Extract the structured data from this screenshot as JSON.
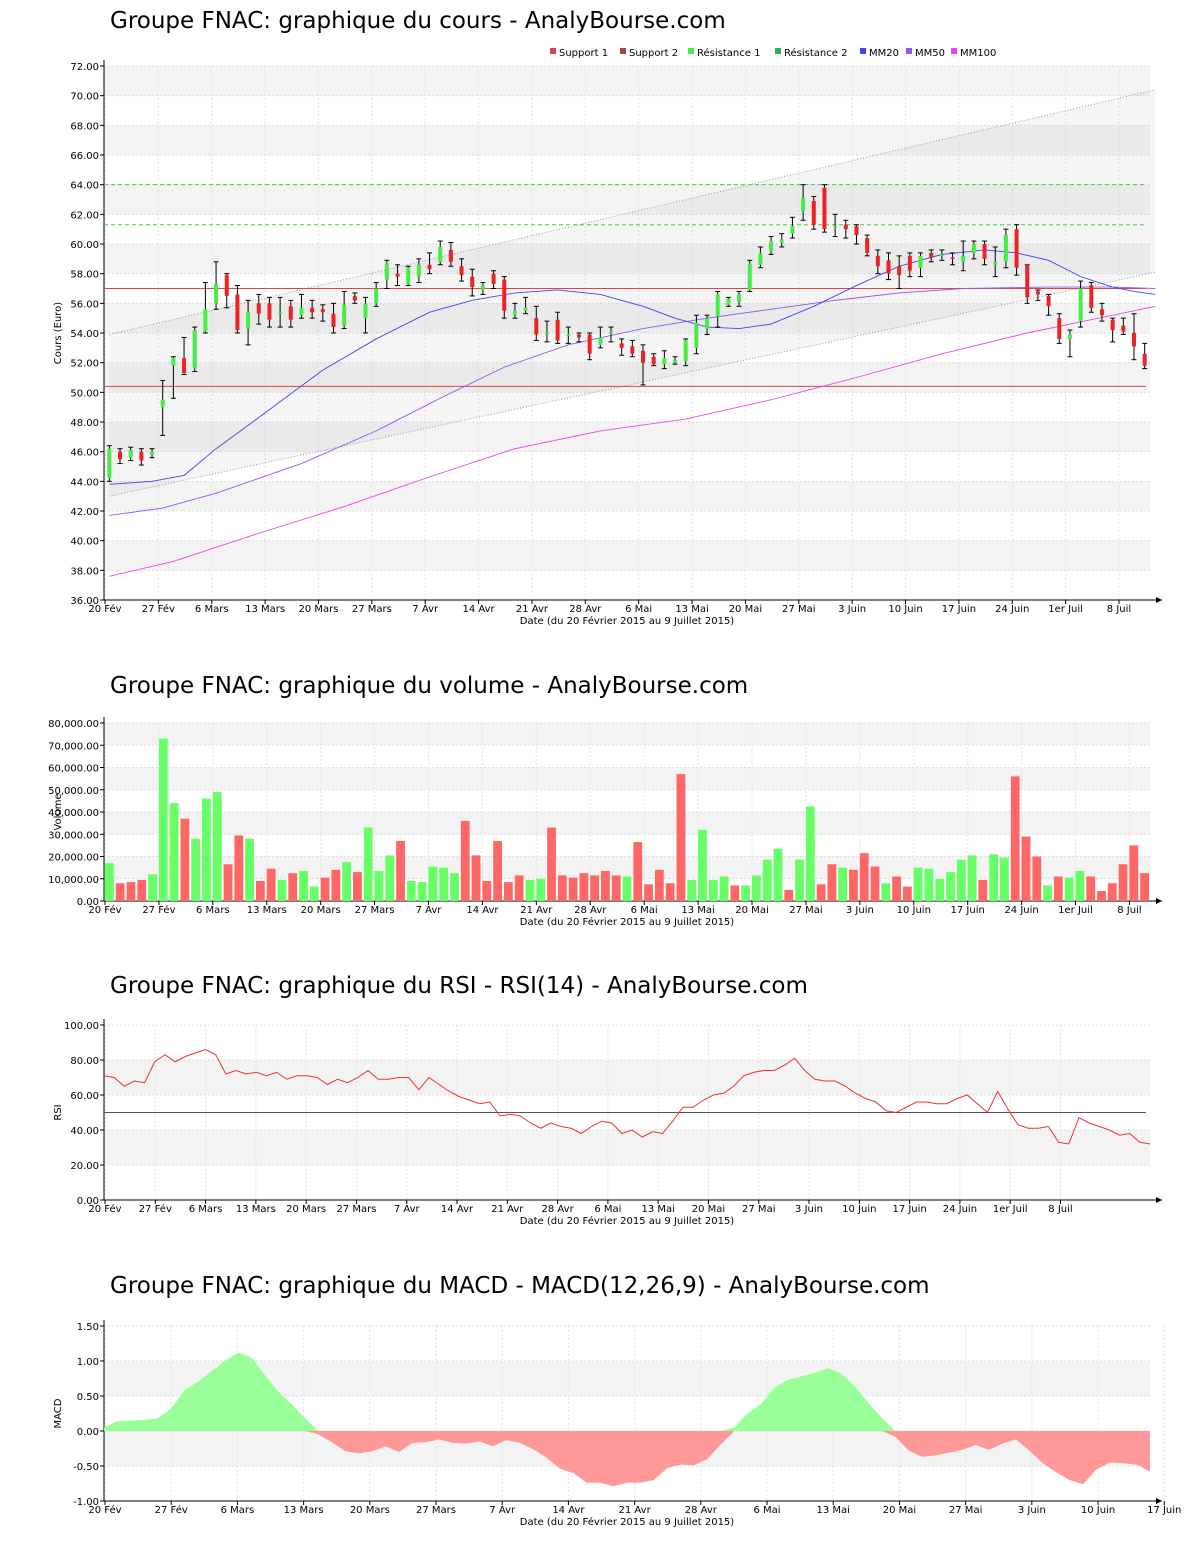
{
  "colors": {
    "up": "#44ee44",
    "down": "#ee2222",
    "vol_up": "#66ff66",
    "vol_down": "#ff6666",
    "mm20": "#4444ee",
    "mm50": "#9955ee",
    "mm100": "#ee44ee",
    "support": "#dd4444",
    "resistance": "#44cc44",
    "rsi": "#ee3333",
    "macd_pos": "#99ff99",
    "macd_neg": "#ff9999"
  },
  "x_ticks": [
    "20 Fév",
    "27 Fév",
    "6 Mars",
    "13 Mars",
    "20 Mars",
    "27 Mars",
    "7 Avr",
    "14 Avr",
    "21 Avr",
    "28 Avr",
    "6 Mai",
    "13 Mai",
    "20 Mai",
    "27 Mai",
    "3 Juin",
    "10 Juin",
    "17 Juin",
    "24 Juin",
    "1er Juil",
    "8 Juil"
  ],
  "x_axis_label": "Date (du 20 Février 2015 au 9 Juillet 2015)",
  "price": {
    "title": "Groupe FNAC: graphique du cours - AnalyBourse.com",
    "ylabel": "Cours (Euro)",
    "yticks": [
      "72.00",
      "70.00",
      "68.00",
      "66.00",
      "64.00",
      "62.00",
      "60.00",
      "58.00",
      "56.00",
      "54.00",
      "52.00",
      "50.00",
      "48.00",
      "46.00",
      "44.00",
      "42.00",
      "40.00",
      "38.00",
      "36.00"
    ],
    "legend": [
      "Support 1",
      "Support 2",
      "Résistance 1",
      "Résistance 2",
      "MM20",
      "MM50",
      "MM100"
    ],
    "chart_data": {
      "type": "candlestick",
      "ylim": [
        36,
        72
      ],
      "levels": {
        "support_1": 50.4,
        "support_2": 57.0,
        "resistance_1": 61.3,
        "resistance_2": 64.0
      },
      "channel": {
        "upper": [
          [
            0,
            53.9
          ],
          [
            98,
            70.4
          ]
        ],
        "lower": [
          [
            0,
            43.0
          ],
          [
            98,
            58.1
          ]
        ]
      },
      "candles": [
        [
          44.2,
          46.2,
          46.4,
          44.0
        ],
        [
          46.0,
          45.5,
          46.2,
          45.2
        ],
        [
          45.6,
          46.1,
          46.3,
          45.4
        ],
        [
          46.0,
          45.4,
          46.2,
          45.1
        ],
        [
          45.8,
          46.0,
          46.2,
          45.6
        ],
        [
          49.0,
          49.5,
          50.8,
          47.1
        ],
        [
          51.8,
          52.3,
          52.4,
          49.6
        ],
        [
          52.3,
          51.3,
          53.7,
          51.2
        ],
        [
          51.6,
          54.2,
          54.4,
          51.4
        ],
        [
          54.1,
          55.6,
          57.4,
          54.0
        ],
        [
          56.0,
          57.3,
          58.8,
          55.6
        ],
        [
          57.9,
          56.5,
          58.0,
          55.7
        ],
        [
          56.6,
          54.2,
          57.2,
          54.0
        ],
        [
          54.3,
          55.4,
          56.2,
          53.2
        ],
        [
          56.0,
          55.3,
          56.6,
          54.6
        ],
        [
          56.0,
          54.9,
          56.4,
          54.4
        ],
        [
          55.3,
          55.4,
          56.4,
          54.4
        ],
        [
          55.8,
          54.9,
          56.2,
          54.4
        ],
        [
          55.2,
          55.7,
          56.6,
          55.0
        ],
        [
          55.7,
          55.4,
          56.2,
          55.0
        ],
        [
          55.6,
          55.4,
          55.9,
          54.8
        ],
        [
          55.3,
          54.4,
          56.0,
          54.0
        ],
        [
          54.5,
          55.9,
          56.8,
          54.3
        ],
        [
          56.5,
          56.2,
          56.7,
          56.0
        ],
        [
          55.0,
          56.0,
          56.4,
          54.0
        ],
        [
          56.0,
          57.0,
          57.4,
          55.8
        ],
        [
          57.6,
          58.7,
          58.9,
          57.0
        ],
        [
          58.0,
          57.8,
          58.6,
          57.2
        ],
        [
          57.3,
          58.4,
          58.5,
          57.2
        ],
        [
          57.8,
          58.6,
          59.0,
          57.4
        ],
        [
          58.6,
          58.3,
          59.4,
          58.0
        ],
        [
          58.8,
          59.8,
          60.2,
          58.6
        ],
        [
          59.6,
          58.8,
          60.1,
          58.5
        ],
        [
          58.5,
          57.9,
          59.0,
          57.5
        ],
        [
          57.8,
          57.1,
          58.3,
          56.5
        ],
        [
          56.9,
          57.2,
          57.4,
          56.6
        ],
        [
          58.0,
          57.3,
          58.2,
          57.0
        ],
        [
          57.6,
          55.5,
          57.8,
          55.0
        ],
        [
          55.2,
          55.5,
          56.0,
          55.0
        ],
        [
          55.5,
          55.7,
          56.4,
          55.3
        ],
        [
          55.0,
          53.9,
          55.8,
          53.5
        ],
        [
          54.0,
          54.0,
          54.8,
          53.4
        ],
        [
          54.9,
          53.5,
          55.4,
          53.3
        ],
        [
          53.8,
          53.9,
          54.4,
          53.3
        ],
        [
          53.9,
          53.7,
          54.0,
          53.4
        ],
        [
          53.9,
          52.6,
          54.0,
          52.2
        ],
        [
          53.2,
          53.7,
          54.4,
          53.0
        ],
        [
          54.0,
          54.1,
          54.4,
          53.4
        ],
        [
          53.3,
          53.0,
          53.6,
          52.5
        ],
        [
          53.1,
          52.6,
          53.5,
          52.4
        ],
        [
          52.8,
          52.0,
          53.2,
          50.5
        ],
        [
          52.4,
          51.9,
          52.6,
          51.8
        ],
        [
          51.9,
          52.3,
          52.8,
          51.6
        ],
        [
          52.0,
          52.2,
          52.4,
          51.9
        ],
        [
          52.1,
          53.5,
          53.6,
          51.8
        ],
        [
          53.0,
          54.7,
          55.2,
          52.6
        ],
        [
          54.3,
          55.0,
          55.2,
          53.9
        ],
        [
          55.1,
          56.6,
          56.8,
          54.4
        ],
        [
          55.9,
          56.3,
          56.4,
          55.8
        ],
        [
          56.1,
          56.6,
          56.8,
          55.8
        ],
        [
          56.9,
          58.7,
          58.9,
          56.8
        ],
        [
          58.6,
          59.4,
          59.8,
          58.4
        ],
        [
          59.5,
          60.2,
          60.5,
          59.3
        ],
        [
          60.1,
          60.3,
          60.7,
          59.8
        ],
        [
          60.7,
          61.2,
          61.8,
          60.4
        ],
        [
          62.2,
          63.1,
          64.0,
          61.6
        ],
        [
          62.9,
          61.3,
          63.2,
          61.0
        ],
        [
          63.8,
          61.0,
          64.0,
          60.8
        ],
        [
          61.2,
          61.2,
          62.0,
          60.5
        ],
        [
          61.3,
          61.0,
          61.6,
          60.4
        ],
        [
          61.2,
          60.6,
          61.3,
          60.0
        ],
        [
          60.4,
          59.4,
          60.6,
          59.2
        ],
        [
          59.2,
          58.5,
          59.6,
          58.0
        ],
        [
          58.9,
          58.0,
          59.4,
          57.6
        ],
        [
          58.5,
          57.9,
          59.2,
          57.0
        ],
        [
          59.2,
          58.2,
          59.4,
          57.8
        ],
        [
          58.4,
          59.2,
          59.4,
          57.8
        ],
        [
          59.4,
          59.1,
          59.6,
          58.8
        ],
        [
          59.2,
          59.3,
          59.6,
          58.9
        ],
        [
          59.1,
          59.0,
          59.4,
          58.6
        ],
        [
          58.8,
          59.2,
          60.2,
          58.2
        ],
        [
          59.4,
          60.0,
          60.2,
          59.0
        ],
        [
          60.0,
          59.0,
          60.2,
          58.6
        ],
        [
          58.6,
          58.8,
          59.8,
          57.8
        ],
        [
          58.8,
          60.6,
          61.0,
          58.4
        ],
        [
          61.0,
          58.4,
          61.3,
          57.9
        ],
        [
          58.6,
          56.4,
          58.6,
          56.0
        ],
        [
          56.8,
          56.6,
          56.9,
          56.2
        ],
        [
          56.5,
          55.8,
          56.6,
          55.2
        ],
        [
          55.0,
          53.6,
          55.3,
          53.3
        ],
        [
          53.6,
          53.9,
          54.2,
          52.4
        ],
        [
          54.8,
          57.0,
          57.5,
          54.4
        ],
        [
          57.2,
          55.7,
          57.4,
          55.4
        ],
        [
          55.6,
          55.2,
          56.0,
          54.8
        ],
        [
          54.9,
          54.2,
          55.0,
          53.4
        ],
        [
          54.5,
          54.1,
          55.0,
          53.9
        ],
        [
          54.0,
          53.1,
          55.3,
          52.2
        ],
        [
          52.6,
          51.8,
          53.3,
          51.6
        ]
      ],
      "mm20": [
        [
          0,
          43.8
        ],
        [
          4,
          44.0
        ],
        [
          7,
          44.4
        ],
        [
          10,
          46.2
        ],
        [
          14,
          48.3
        ],
        [
          20,
          51.5
        ],
        [
          25,
          53.6
        ],
        [
          30,
          55.4
        ],
        [
          34,
          56.2
        ],
        [
          38,
          56.7
        ],
        [
          42,
          56.9
        ],
        [
          46,
          56.6
        ],
        [
          50,
          55.8
        ],
        [
          53,
          55.0
        ],
        [
          56,
          54.4
        ],
        [
          59,
          54.3
        ],
        [
          62,
          54.6
        ],
        [
          66,
          55.8
        ],
        [
          70,
          57.2
        ],
        [
          74,
          58.5
        ],
        [
          78,
          59.3
        ],
        [
          82,
          59.6
        ],
        [
          85,
          59.4
        ],
        [
          88,
          58.9
        ],
        [
          91,
          57.8
        ],
        [
          94,
          57.1
        ],
        [
          96,
          56.8
        ],
        [
          98,
          56.6
        ]
      ],
      "mm50": [
        [
          0,
          41.7
        ],
        [
          5,
          42.2
        ],
        [
          10,
          43.2
        ],
        [
          18,
          45.2
        ],
        [
          25,
          47.4
        ],
        [
          31,
          49.6
        ],
        [
          37,
          51.7
        ],
        [
          43,
          53.2
        ],
        [
          50,
          54.3
        ],
        [
          56,
          55.0
        ],
        [
          62,
          55.6
        ],
        [
          68,
          56.2
        ],
        [
          74,
          56.7
        ],
        [
          80,
          57.0
        ],
        [
          88,
          57.1
        ],
        [
          94,
          57.1
        ],
        [
          98,
          57.0
        ]
      ],
      "mm100": [
        [
          0,
          37.6
        ],
        [
          6,
          38.6
        ],
        [
          14,
          40.5
        ],
        [
          22,
          42.3
        ],
        [
          30,
          44.3
        ],
        [
          38,
          46.2
        ],
        [
          46,
          47.4
        ],
        [
          54,
          48.2
        ],
        [
          62,
          49.5
        ],
        [
          70,
          51.0
        ],
        [
          78,
          52.6
        ],
        [
          86,
          54.0
        ],
        [
          92,
          54.9
        ],
        [
          98,
          55.8
        ]
      ]
    }
  },
  "volume": {
    "title": "Groupe FNAC: graphique du volume - AnalyBourse.com",
    "ylabel": "Volume",
    "yticks": [
      "80,000.00",
      "70,000.00",
      "60,000.00",
      "50,000.00",
      "40,000.00",
      "30,000.00",
      "20,000.00",
      "10,000.00",
      "0.00"
    ],
    "chart_data": {
      "type": "bar",
      "ylim": [
        0,
        80000
      ],
      "values": [
        17000,
        8000,
        8500,
        9500,
        12000,
        73000,
        44000,
        37000,
        28000,
        46000,
        49000,
        16500,
        29500,
        28000,
        9000,
        14500,
        9500,
        12500,
        13500,
        6500,
        10500,
        14000,
        17500,
        13000,
        33000,
        13500,
        20500,
        27000,
        9000,
        8500,
        15500,
        15000,
        12500,
        36000,
        20500,
        9000,
        27000,
        8500,
        11500,
        9500,
        10000,
        33000,
        11500,
        10500,
        12500,
        11500,
        13500,
        11500,
        11000,
        26500,
        7500,
        14000,
        8000,
        57000,
        9500,
        32000,
        9500,
        11000,
        7000,
        7000,
        11500,
        18500,
        23500,
        5000,
        18500,
        42500,
        7500,
        16500,
        15000,
        14000,
        21500,
        15500,
        8000,
        11000,
        6500,
        15000,
        14500,
        10000,
        13000,
        18500,
        20500,
        9500,
        21000,
        19500,
        56000,
        29000,
        20000,
        7000,
        11000,
        10500,
        13500,
        11000,
        4500,
        8000,
        16500,
        25000,
        12500
      ],
      "up": [
        1,
        0,
        0,
        0,
        1,
        1,
        1,
        0,
        1,
        1,
        1,
        0,
        0,
        1,
        0,
        0,
        1,
        0,
        1,
        1,
        0,
        0,
        1,
        0,
        1,
        1,
        1,
        0,
        1,
        1,
        1,
        1,
        1,
        0,
        0,
        0,
        0,
        0,
        0,
        1,
        1,
        0,
        0,
        0,
        0,
        0,
        0,
        0,
        1,
        0,
        0,
        0,
        0,
        0,
        1,
        1,
        1,
        1,
        0,
        1,
        1,
        1,
        1,
        0,
        1,
        1,
        0,
        0,
        1,
        0,
        0,
        0,
        1,
        0,
        0,
        1,
        1,
        1,
        1,
        1,
        1,
        0,
        1,
        1,
        0,
        0,
        0,
        1,
        0,
        1,
        1,
        0,
        0,
        0,
        0,
        0,
        0
      ]
    }
  },
  "rsi": {
    "title": "Groupe FNAC: graphique du RSI - RSI(14) - AnalyBourse.com",
    "ylabel": "RSI",
    "yticks": [
      "100.00",
      "80.00",
      "60.00",
      "40.00",
      "20.00",
      "0.00"
    ],
    "chart_data": {
      "type": "line",
      "ylim": [
        0,
        100
      ],
      "reference": 50,
      "values": [
        71,
        70,
        65,
        68,
        67,
        79,
        83,
        79,
        82,
        84,
        86,
        83,
        72,
        74,
        72,
        73,
        71,
        73,
        69,
        71,
        71,
        70,
        66,
        69,
        67,
        70,
        74,
        69,
        69,
        70,
        70,
        63,
        70,
        66,
        62,
        59,
        57,
        55,
        56,
        48,
        49,
        48,
        44,
        41,
        44,
        42,
        41,
        38,
        42,
        45,
        44,
        38,
        40,
        36,
        39,
        38,
        45,
        53,
        53,
        57,
        60,
        61,
        65,
        71,
        73,
        74,
        74,
        77,
        81,
        74,
        69,
        68,
        68,
        65,
        61,
        58,
        56,
        51,
        50,
        53,
        56,
        56,
        55,
        55,
        58,
        60,
        55,
        50,
        62,
        52,
        43,
        41,
        41,
        42,
        33,
        32,
        47,
        44,
        42,
        40,
        37,
        38,
        33,
        32
      ]
    }
  },
  "macd": {
    "title": "Groupe FNAC: graphique du MACD - MACD(12,26,9) - AnalyBourse.com",
    "ylabel": "MACD",
    "yticks": [
      "1.50",
      "1.00",
      "0.50",
      "0.00",
      "-0.50",
      "-1.00"
    ],
    "chart_data": {
      "type": "area",
      "ylim": [
        -1.0,
        1.5
      ],
      "values": [
        0.05,
        0.14,
        0.15,
        0.16,
        0.18,
        0.32,
        0.59,
        0.7,
        0.85,
        1.0,
        1.12,
        1.05,
        0.8,
        0.56,
        0.38,
        0.18,
        -0.05,
        -0.16,
        -0.29,
        -0.32,
        -0.29,
        -0.22,
        -0.3,
        -0.17,
        -0.16,
        -0.12,
        -0.17,
        -0.18,
        -0.15,
        -0.22,
        -0.13,
        -0.17,
        -0.26,
        -0.38,
        -0.54,
        -0.6,
        -0.74,
        -0.74,
        -0.79,
        -0.74,
        -0.74,
        -0.7,
        -0.53,
        -0.48,
        -0.49,
        -0.4,
        -0.19,
        0.05,
        0.25,
        0.39,
        0.62,
        0.73,
        0.78,
        0.83,
        0.9,
        0.82,
        0.64,
        0.4,
        0.19,
        -0.08,
        -0.28,
        -0.37,
        -0.35,
        -0.31,
        -0.27,
        -0.2,
        -0.27,
        -0.18,
        -0.12,
        -0.28,
        -0.46,
        -0.59,
        -0.7,
        -0.76,
        -0.55,
        -0.45,
        -0.46,
        -0.48,
        -0.58
      ]
    }
  }
}
